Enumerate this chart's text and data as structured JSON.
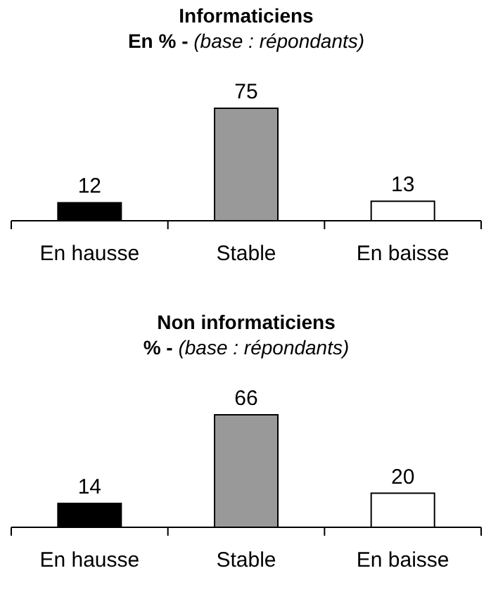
{
  "chart_data": [
    {
      "type": "bar",
      "title": "Informaticiens",
      "subtitle": "En % - (base : répondants)",
      "categories": [
        "En hausse",
        "Stable",
        "En baisse"
      ],
      "values": [
        12,
        75,
        13
      ],
      "colors": [
        "#000000",
        "#999999",
        "#ffffff"
      ],
      "data_labels": true
    },
    {
      "type": "bar",
      "title": "Non informaticiens",
      "subtitle": "% - (base : répondants)",
      "categories": [
        "En hausse",
        "Stable",
        "En baisse"
      ],
      "values": [
        14,
        66,
        20
      ],
      "colors": [
        "#000000",
        "#999999",
        "#ffffff"
      ],
      "data_labels": true
    }
  ]
}
